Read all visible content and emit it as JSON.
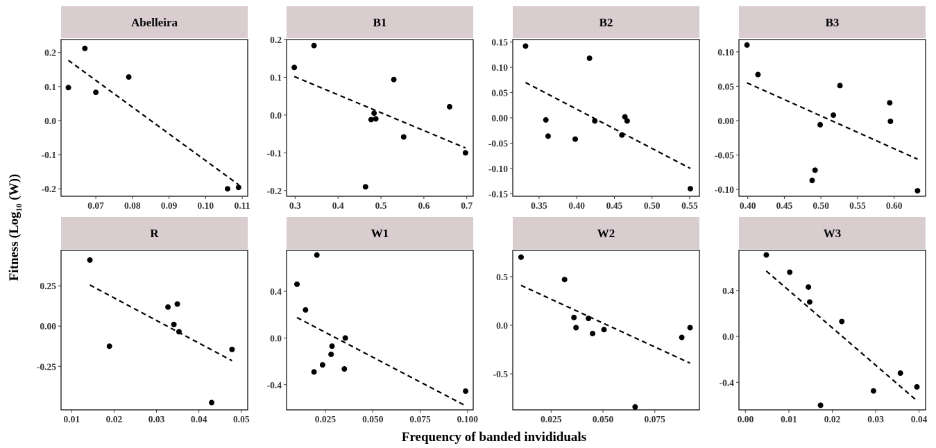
{
  "figure": {
    "xlabel": "Frequency of banded invididuals",
    "ylabel_main": "Fitness (Log",
    "ylabel_sub": "10",
    "ylabel_tail": " (W))"
  },
  "colors": {
    "strip": "#d9cdd0",
    "point": "#000000",
    "frame": "#000000",
    "tick_text": "#333333"
  },
  "chart_data": [
    {
      "type": "scatter",
      "title": "Abelleira",
      "xlim": [
        0.0605,
        0.1115
      ],
      "ylim": [
        -0.222,
        0.238
      ],
      "xticks": [
        0.07,
        0.08,
        0.09,
        0.1,
        0.11
      ],
      "xtick_labels": [
        "0.07",
        "0.08",
        "0.09",
        "0.10",
        "0.11"
      ],
      "yticks": [
        0.2,
        0.1,
        0.0,
        -0.1,
        -0.2
      ],
      "ytick_labels": [
        "0.2",
        "0.1",
        "0.0",
        "-0.1",
        "-0.2"
      ],
      "points": [
        [
          0.0625,
          0.097
        ],
        [
          0.067,
          0.212
        ],
        [
          0.07,
          0.083
        ],
        [
          0.079,
          0.128
        ],
        [
          0.106,
          -0.2
        ],
        [
          0.109,
          -0.196
        ]
      ],
      "fit_line": [
        [
          0.0625,
          0.177
        ],
        [
          0.109,
          -0.188
        ]
      ]
    },
    {
      "type": "scatter",
      "title": "B1",
      "xlim": [
        0.28,
        0.715
      ],
      "ylim": [
        -0.215,
        0.2
      ],
      "xticks": [
        0.3,
        0.4,
        0.5,
        0.6,
        0.7
      ],
      "xtick_labels": [
        "0.3",
        "0.4",
        "0.5",
        "0.6",
        "0.7"
      ],
      "yticks": [
        0.2,
        0.1,
        0.0,
        -0.1,
        -0.2
      ],
      "ytick_labels": [
        "0.2",
        "0.1",
        "0.0",
        "-0.1",
        "-0.2"
      ],
      "points": [
        [
          0.298,
          0.126
        ],
        [
          0.344,
          0.184
        ],
        [
          0.464,
          -0.19
        ],
        [
          0.477,
          -0.012
        ],
        [
          0.484,
          0.005
        ],
        [
          0.488,
          -0.01
        ],
        [
          0.53,
          0.094
        ],
        [
          0.553,
          -0.058
        ],
        [
          0.66,
          0.022
        ],
        [
          0.697,
          -0.1
        ]
      ],
      "fit_line": [
        [
          0.298,
          0.102
        ],
        [
          0.697,
          -0.087
        ]
      ]
    },
    {
      "type": "scatter",
      "title": "B2",
      "xlim": [
        0.315,
        0.563
      ],
      "ylim": [
        -0.155,
        0.155
      ],
      "xticks": [
        0.35,
        0.4,
        0.45,
        0.5,
        0.55
      ],
      "xtick_labels": [
        "0.35",
        "0.40",
        "0.45",
        "0.50",
        "0.55"
      ],
      "yticks": [
        0.15,
        0.1,
        0.05,
        0.0,
        -0.05,
        -0.1,
        -0.15
      ],
      "ytick_labels": [
        "0.15",
        "0.10",
        "0.05",
        "0.00",
        "-0.05",
        "-0.10",
        "-0.15"
      ],
      "points": [
        [
          0.332,
          0.142
        ],
        [
          0.359,
          -0.004
        ],
        [
          0.362,
          -0.036
        ],
        [
          0.398,
          -0.042
        ],
        [
          0.417,
          0.118
        ],
        [
          0.424,
          -0.006
        ],
        [
          0.46,
          -0.034
        ],
        [
          0.464,
          0.002
        ],
        [
          0.467,
          -0.006
        ],
        [
          0.551,
          -0.14
        ]
      ],
      "fit_line": [
        [
          0.332,
          0.07
        ],
        [
          0.551,
          -0.1
        ]
      ]
    },
    {
      "type": "scatter",
      "title": "B3",
      "xlim": [
        0.388,
        0.643
      ],
      "ylim": [
        -0.11,
        0.118
      ],
      "xticks": [
        0.4,
        0.45,
        0.5,
        0.55,
        0.6
      ],
      "xtick_labels": [
        "0.40",
        "0.45",
        "0.50",
        "0.55",
        "0.60"
      ],
      "yticks": [
        0.1,
        0.05,
        0.0,
        -0.05,
        -0.1
      ],
      "ytick_labels": [
        "0.10",
        "0.05",
        "0.00",
        "-0.05",
        "-0.10"
      ],
      "points": [
        [
          0.399,
          0.11
        ],
        [
          0.414,
          0.067
        ],
        [
          0.488,
          -0.087
        ],
        [
          0.492,
          -0.072
        ],
        [
          0.499,
          -0.006
        ],
        [
          0.517,
          0.008
        ],
        [
          0.526,
          0.051
        ],
        [
          0.594,
          0.026
        ],
        [
          0.595,
          -0.001
        ],
        [
          0.632,
          -0.102
        ]
      ],
      "fit_line": [
        [
          0.399,
          0.055
        ],
        [
          0.632,
          -0.056
        ]
      ]
    },
    {
      "type": "scatter",
      "title": "R",
      "xlim": [
        0.0075,
        0.0515
      ],
      "ylim": [
        -0.52,
        0.47
      ],
      "xticks": [
        0.01,
        0.02,
        0.03,
        0.04,
        0.05
      ],
      "xtick_labels": [
        "0.01",
        "0.02",
        "0.03",
        "0.04",
        "0.05"
      ],
      "yticks": [
        0.25,
        0.0,
        -0.25
      ],
      "ytick_labels": [
        "0.25",
        "0.00",
        "-0.25"
      ],
      "points": [
        [
          0.0143,
          0.41
        ],
        [
          0.0189,
          -0.125
        ],
        [
          0.0327,
          0.118
        ],
        [
          0.0341,
          0.01
        ],
        [
          0.0349,
          0.137
        ],
        [
          0.0353,
          -0.035
        ],
        [
          0.043,
          -0.475
        ],
        [
          0.0478,
          -0.145
        ]
      ],
      "fit_line": [
        [
          0.0143,
          0.255
        ],
        [
          0.0478,
          -0.215
        ]
      ]
    },
    {
      "type": "scatter",
      "title": "W1",
      "xlim": [
        0.0045,
        0.103
      ],
      "ylim": [
        -0.615,
        0.75
      ],
      "xticks": [
        0.025,
        0.05,
        0.075,
        0.1
      ],
      "xtick_labels": [
        "0.025",
        "0.050",
        "0.075",
        "0.100"
      ],
      "yticks": [
        0.4,
        0.0,
        -0.4
      ],
      "ytick_labels": [
        "0.4",
        "0.0",
        "-0.4"
      ],
      "points": [
        [
          0.01,
          0.46
        ],
        [
          0.0145,
          0.24
        ],
        [
          0.019,
          -0.29
        ],
        [
          0.0205,
          0.71
        ],
        [
          0.0235,
          -0.23
        ],
        [
          0.028,
          -0.14
        ],
        [
          0.0285,
          -0.07
        ],
        [
          0.035,
          -0.265
        ],
        [
          0.0355,
          0.0
        ],
        [
          0.099,
          -0.455
        ]
      ],
      "fit_line": [
        [
          0.01,
          0.175
        ],
        [
          0.099,
          -0.58
        ]
      ]
    },
    {
      "type": "scatter",
      "title": "W2",
      "xlim": [
        0.0065,
        0.0965
      ],
      "ylim": [
        -0.87,
        0.77
      ],
      "xticks": [
        0.025,
        0.05,
        0.075
      ],
      "xtick_labels": [
        "0.025",
        "0.050",
        "0.075"
      ],
      "yticks": [
        0.5,
        0.0,
        -0.5
      ],
      "ytick_labels": [
        "0.5",
        "0.0",
        "-0.5"
      ],
      "points": [
        [
          0.0105,
          0.7
        ],
        [
          0.0315,
          0.47
        ],
        [
          0.036,
          0.08
        ],
        [
          0.037,
          -0.025
        ],
        [
          0.043,
          0.07
        ],
        [
          0.045,
          -0.085
        ],
        [
          0.0505,
          -0.045
        ],
        [
          0.0655,
          -0.84
        ],
        [
          0.088,
          -0.125
        ],
        [
          0.092,
          -0.025
        ]
      ],
      "fit_line": [
        [
          0.0105,
          0.41
        ],
        [
          0.092,
          -0.39
        ]
      ]
    },
    {
      "type": "scatter",
      "title": "W3",
      "xlim": [
        -0.0015,
        0.0415
      ],
      "ylim": [
        -0.64,
        0.75
      ],
      "xticks": [
        0.0,
        0.01,
        0.02,
        0.03,
        0.04
      ],
      "xtick_labels": [
        "0.00",
        "0.01",
        "0.02",
        "0.03",
        "0.04"
      ],
      "yticks": [
        0.4,
        0.0,
        -0.4
      ],
      "ytick_labels": [
        "0.4",
        "0.0",
        "-0.4"
      ],
      "points": [
        [
          0.0048,
          0.71
        ],
        [
          0.0102,
          0.56
        ],
        [
          0.0145,
          0.43
        ],
        [
          0.0148,
          0.3
        ],
        [
          0.0173,
          -0.6
        ],
        [
          0.0222,
          0.13
        ],
        [
          0.0295,
          -0.475
        ],
        [
          0.0357,
          -0.32
        ],
        [
          0.0395,
          -0.44
        ]
      ],
      "fit_line": [
        [
          0.0048,
          0.57
        ],
        [
          0.0395,
          -0.56
        ]
      ]
    }
  ]
}
